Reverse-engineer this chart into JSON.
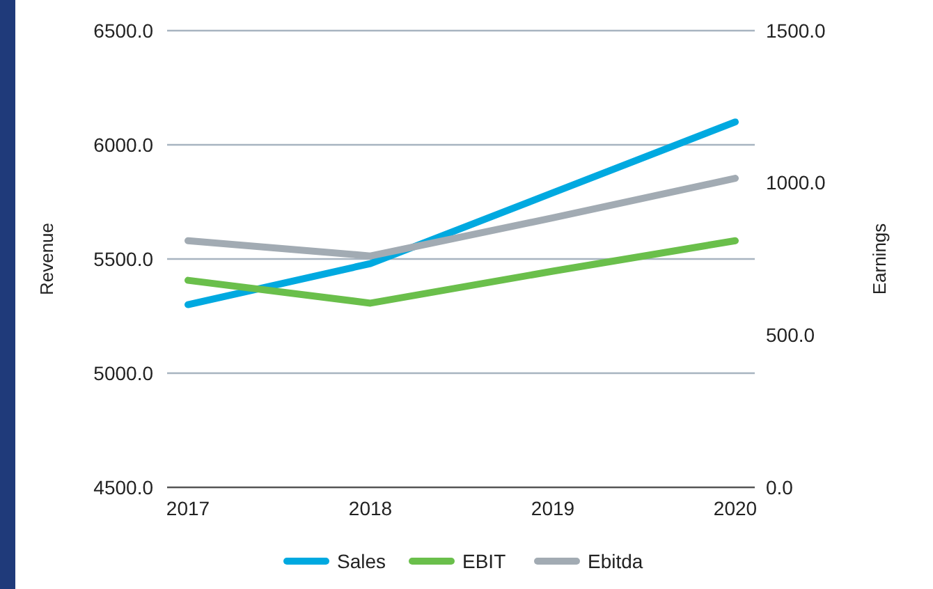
{
  "chart_data": {
    "type": "line",
    "xlabel": null,
    "ylabel": "Revenue",
    "y2label": "Earnings",
    "categories": [
      "2017",
      "2018",
      "2019",
      "2020"
    ],
    "series": [
      {
        "name": "Sales",
        "color": "#00a9e0",
        "values": [
          5300,
          5480,
          5790,
          6100
        ]
      },
      {
        "name": "EBIT",
        "color": "#6abf4b",
        "values": [
          680,
          605,
          710,
          810
        ],
        "axis": "y2"
      },
      {
        "name": "Ebitda",
        "color": "#a2abb3",
        "values": [
          810,
          760,
          885,
          1015
        ],
        "axis": "y2"
      }
    ],
    "ylim": [
      4500,
      6500
    ],
    "yticks": [
      {
        "value": 4500,
        "label": "4500.0"
      },
      {
        "value": 5000,
        "label": "5000.0"
      },
      {
        "value": 5500,
        "label": "5500.0"
      },
      {
        "value": 6000,
        "label": "6000.0"
      },
      {
        "value": 6500,
        "label": "6500.0"
      }
    ],
    "y2lim": [
      0,
      1500
    ],
    "y2ticks": [
      {
        "value": 0,
        "label": "0.0"
      },
      {
        "value": 500,
        "label": "500.0"
      },
      {
        "value": 1000,
        "label": "1000.0"
      },
      {
        "value": 1500,
        "label": "1500.0"
      }
    ],
    "grid": "y",
    "legend": "bottom",
    "marker": "none",
    "line_style": "solid"
  }
}
